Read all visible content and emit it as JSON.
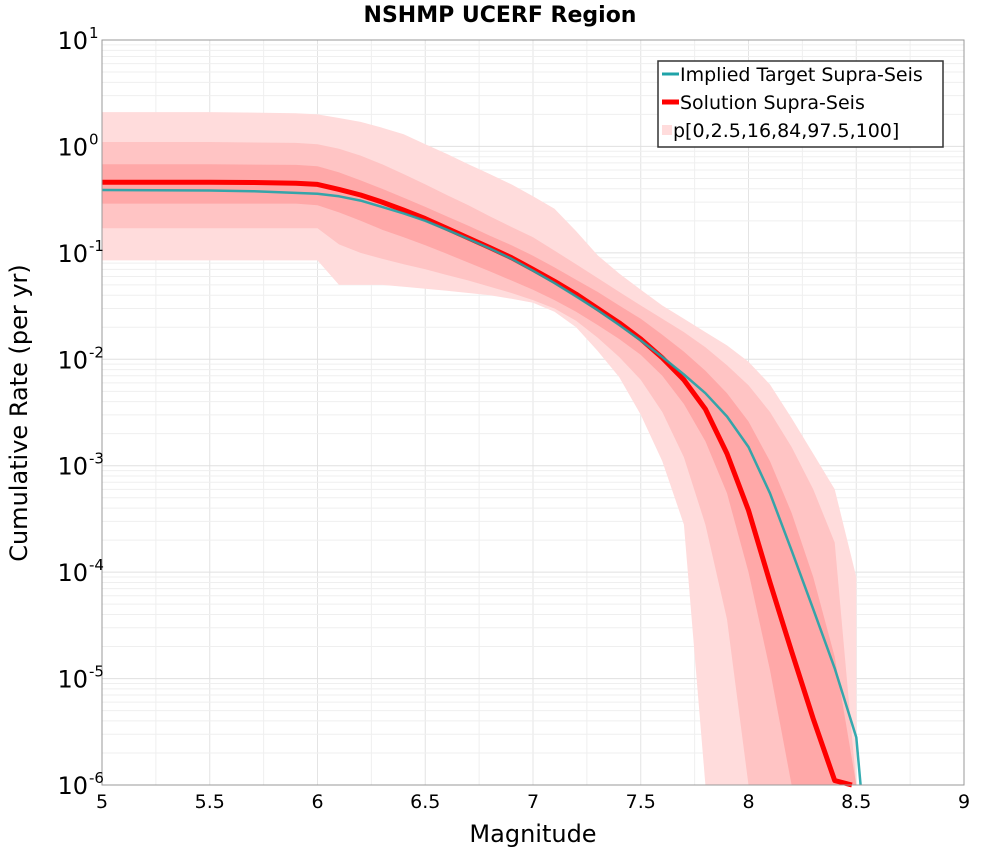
{
  "chart_data": {
    "type": "line",
    "title": "NSHMP UCERF Region",
    "xlabel": "Magnitude",
    "ylabel": "Cumulative Rate (per yr)",
    "xlim": [
      5,
      9
    ],
    "ylim": [
      1e-06,
      10
    ],
    "yscale": "log",
    "grid": true,
    "legend_position": "top-right",
    "x_ticks": [
      "5",
      "5.5",
      "6",
      "6.5",
      "7",
      "7.5",
      "8",
      "8.5",
      "9"
    ],
    "y_ticks": [
      {
        "base": "10",
        "exp": "1",
        "value": 10
      },
      {
        "base": "10",
        "exp": "0",
        "value": 1
      },
      {
        "base": "10",
        "exp": "-1",
        "value": 0.1
      },
      {
        "base": "10",
        "exp": "-2",
        "value": 0.01
      },
      {
        "base": "10",
        "exp": "-3",
        "value": 0.001
      },
      {
        "base": "10",
        "exp": "-4",
        "value": 0.0001
      },
      {
        "base": "10",
        "exp": "-5",
        "value": 1e-05
      },
      {
        "base": "10",
        "exp": "-6",
        "value": 1e-06
      }
    ],
    "colors": {
      "target": "#1fa3a8",
      "solution": "#ff0000",
      "band_outer": "#ffdcdc",
      "band_mid": "#ffc4c4",
      "band_inner": "#ffa8a8"
    },
    "series": [
      {
        "name": "Implied Target Supra-Seis",
        "x": [
          5.0,
          5.5,
          5.7,
          6.0,
          6.1,
          6.2,
          6.3,
          6.4,
          6.5,
          6.6,
          6.7,
          6.8,
          6.9,
          7.0,
          7.1,
          7.2,
          7.3,
          7.4,
          7.5,
          7.6,
          7.7,
          7.8,
          7.9,
          8.0,
          8.1,
          8.2,
          8.3,
          8.4,
          8.5,
          8.52
        ],
        "y": [
          0.39,
          0.385,
          0.38,
          0.36,
          0.34,
          0.31,
          0.27,
          0.235,
          0.2,
          0.165,
          0.135,
          0.11,
          0.088,
          0.068,
          0.052,
          0.039,
          0.029,
          0.021,
          0.015,
          0.0105,
          0.0072,
          0.0048,
          0.0029,
          0.0015,
          0.00055,
          0.00016,
          4.5e-05,
          1.25e-05,
          2.8e-06,
          1e-06
        ]
      },
      {
        "name": "Solution Supra-Seis",
        "x": [
          5.0,
          5.5,
          5.7,
          5.9,
          6.0,
          6.1,
          6.2,
          6.3,
          6.4,
          6.5,
          6.6,
          6.7,
          6.8,
          6.9,
          7.0,
          7.1,
          7.2,
          7.3,
          7.4,
          7.5,
          7.6,
          7.7,
          7.8,
          7.9,
          8.0,
          8.1,
          8.2,
          8.3,
          8.4,
          8.48
        ],
        "y": [
          0.46,
          0.46,
          0.458,
          0.45,
          0.44,
          0.395,
          0.35,
          0.3,
          0.252,
          0.21,
          0.17,
          0.138,
          0.112,
          0.09,
          0.07,
          0.054,
          0.041,
          0.03,
          0.022,
          0.0155,
          0.0103,
          0.0064,
          0.0034,
          0.0013,
          0.00038,
          8e-05,
          1.8e-05,
          4.2e-06,
          1.1e-06,
          1e-06
        ]
      },
      {
        "name": "p[0,2.5,16,84,97.5,100]",
        "type": "percentile-bands",
        "x": [
          5.0,
          5.5,
          5.9,
          6.0,
          6.1,
          6.2,
          6.3,
          6.4,
          6.5,
          6.6,
          6.7,
          6.8,
          6.9,
          7.0,
          7.1,
          7.2,
          7.3,
          7.4,
          7.5,
          7.6,
          7.7,
          7.8,
          7.9,
          8.0,
          8.1,
          8.2,
          8.3,
          8.4,
          8.5
        ],
        "p0": [
          0.085,
          0.085,
          0.085,
          0.085,
          0.05,
          0.05,
          0.05,
          0.048,
          0.046,
          0.044,
          0.042,
          0.04,
          0.037,
          0.034,
          0.028,
          0.02,
          0.012,
          0.0068,
          0.003,
          0.0011,
          0.00028,
          1e-06,
          1e-06,
          1e-06,
          1e-06,
          1e-06,
          1e-06,
          1e-06,
          1e-06
        ],
        "p2_5": [
          0.17,
          0.17,
          0.17,
          0.17,
          0.12,
          0.1,
          0.088,
          0.078,
          0.07,
          0.062,
          0.055,
          0.048,
          0.042,
          0.036,
          0.03,
          0.023,
          0.016,
          0.0105,
          0.0064,
          0.0032,
          0.0012,
          0.00028,
          3.6e-05,
          1e-06,
          1e-06,
          1e-06,
          1e-06,
          1e-06,
          1e-06
        ],
        "p16": [
          0.29,
          0.29,
          0.29,
          0.28,
          0.24,
          0.2,
          0.165,
          0.14,
          0.118,
          0.098,
          0.081,
          0.067,
          0.055,
          0.045,
          0.036,
          0.028,
          0.021,
          0.0155,
          0.011,
          0.007,
          0.0038,
          0.0017,
          0.00055,
          0.0001,
          1.2e-05,
          1e-06,
          1e-06,
          1e-06,
          1e-06
        ],
        "p84": [
          0.68,
          0.68,
          0.67,
          0.65,
          0.57,
          0.48,
          0.4,
          0.33,
          0.27,
          0.22,
          0.18,
          0.145,
          0.118,
          0.094,
          0.073,
          0.056,
          0.043,
          0.032,
          0.024,
          0.017,
          0.0118,
          0.0078,
          0.0048,
          0.0026,
          0.0011,
          0.00036,
          9e-05,
          1.6e-05,
          1e-06
        ],
        "p97_5": [
          1.1,
          1.1,
          1.08,
          1.05,
          0.95,
          0.82,
          0.68,
          0.55,
          0.44,
          0.35,
          0.28,
          0.22,
          0.175,
          0.14,
          0.105,
          0.078,
          0.058,
          0.043,
          0.032,
          0.024,
          0.018,
          0.013,
          0.0088,
          0.0057,
          0.0032,
          0.0015,
          0.0006,
          0.00019,
          1e-06
        ],
        "p100": [
          2.1,
          2.1,
          2.05,
          2.0,
          1.85,
          1.7,
          1.5,
          1.3,
          1.05,
          0.85,
          0.68,
          0.55,
          0.44,
          0.34,
          0.26,
          0.16,
          0.095,
          0.064,
          0.045,
          0.032,
          0.024,
          0.018,
          0.0135,
          0.0095,
          0.0058,
          0.0028,
          0.0013,
          0.0006,
          9e-05
        ]
      }
    ]
  }
}
